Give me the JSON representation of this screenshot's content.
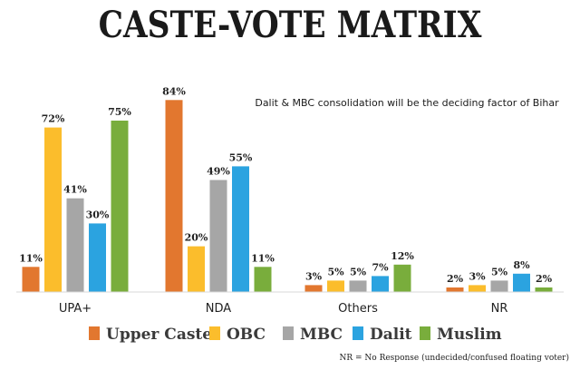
{
  "chart_data": {
    "type": "bar",
    "title": "CASTE-VOTE MATRIX",
    "annotation": "Dalit & MBC consolidation will be the deciding factor of Bihar",
    "categories": [
      "UPA+",
      "NDA",
      "Others",
      "NR"
    ],
    "value_suffix": "%",
    "ylim": [
      0,
      100
    ],
    "series": [
      {
        "name": "Upper Caste",
        "color": "#e2772f",
        "values": [
          11,
          84,
          3,
          2
        ]
      },
      {
        "name": "OBC",
        "color": "#fbbd2c",
        "values": [
          72,
          20,
          5,
          3
        ]
      },
      {
        "name": "MBC",
        "color": "#a6a6a6",
        "values": [
          41,
          49,
          5,
          5
        ]
      },
      {
        "name": "Dalit",
        "color": "#2ba3e0",
        "values": [
          30,
          55,
          7,
          8
        ]
      },
      {
        "name": "Muslim",
        "color": "#79ad3c",
        "values": [
          75,
          11,
          12,
          2
        ]
      }
    ],
    "legend_position": "bottom",
    "grid": false
  },
  "footnote": "NR = No Response (undecided/confused floating voter)"
}
